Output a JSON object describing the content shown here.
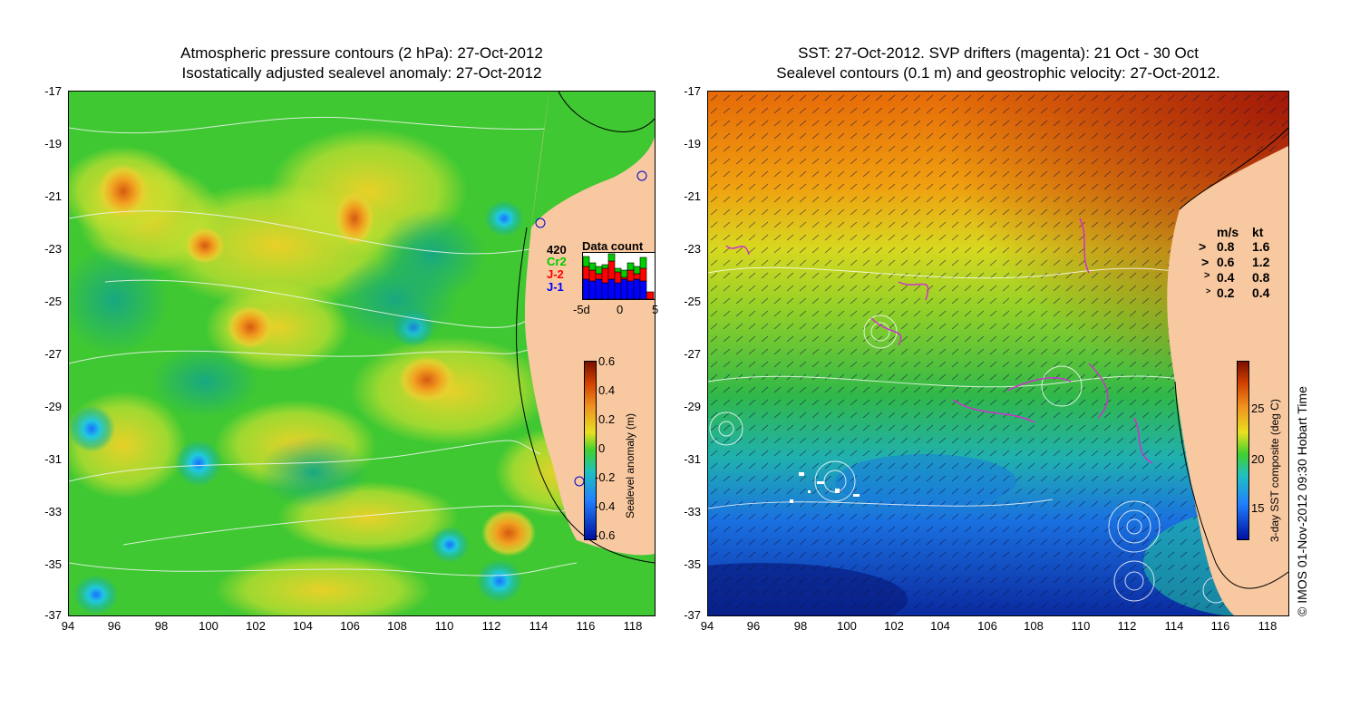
{
  "left_panel": {
    "title_line1": "Atmospheric pressure contours (2 hPa): 27-Oct-2012",
    "title_line2": "Isostatically adjusted sealevel anomaly: 27-Oct-2012",
    "colorbar": {
      "label": "Sealevel anomaly (m)",
      "ticks": [
        "0.6",
        "0.4",
        "0.2",
        "0",
        "-0.2",
        "-0.4",
        "-0.6"
      ]
    },
    "data_count": {
      "title": "Data count",
      "max_label": "420",
      "legend": [
        "Cr2",
        "J-2",
        "J-1"
      ],
      "legend_colors": [
        "#00cc00",
        "#ff0000",
        "#0000ff"
      ],
      "xticks": [
        "-5d",
        "0",
        "5"
      ]
    }
  },
  "right_panel": {
    "title_line1": "SST: 27-Oct-2012. SVP drifters (magenta): 21 Oct - 30 Oct",
    "title_line2": "Sealevel contours (0.1 m) and geostrophic velocity: 27-Oct-2012.",
    "colorbar": {
      "label": "3-day SST composite (deg C)",
      "ticks": [
        "25",
        "20",
        "15"
      ]
    },
    "velocity_legend": {
      "header_ms": "m/s",
      "header_kt": "kt",
      "rows": [
        {
          "ms": "0.8",
          "kt": "1.6"
        },
        {
          "ms": "0.6",
          "kt": "1.2"
        },
        {
          "ms": "0.4",
          "kt": "0.8"
        },
        {
          "ms": "0.2",
          "kt": "0.4"
        }
      ]
    },
    "copyright": "© IMOS 01-Nov-2012 09:30 Hobart Time"
  },
  "axes": {
    "y_ticks": [
      "-17",
      "-19",
      "-21",
      "-23",
      "-25",
      "-27",
      "-29",
      "-31",
      "-33",
      "-35",
      "-37"
    ],
    "x_ticks": [
      "94",
      "96",
      "98",
      "100",
      "102",
      "104",
      "106",
      "108",
      "110",
      "112",
      "114",
      "116",
      "118"
    ]
  },
  "colors": {
    "land": "#f8c8a0",
    "sla_green": "#2fc22a",
    "sla_yellow": "#d6e82a",
    "sla_orange": "#f0a020",
    "sst_orange": "#f08c10",
    "sst_blue": "#1a6ee0"
  }
}
